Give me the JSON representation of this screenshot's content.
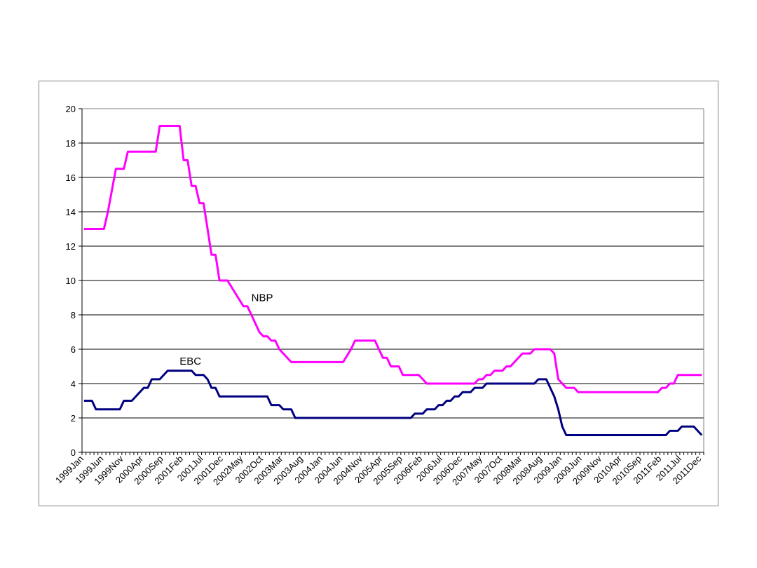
{
  "chart_data": {
    "type": "line",
    "title": "",
    "xlabel": "",
    "ylabel": "",
    "ylim": [
      0,
      20
    ],
    "yticks": [
      0,
      2,
      4,
      6,
      8,
      10,
      12,
      14,
      16,
      18,
      20
    ],
    "x_start": "1999-01",
    "x_end": "2011-12",
    "x_tick_labels": [
      "1999Jan",
      "1999Jun",
      "1999Nov",
      "2000Apr",
      "2000Sep",
      "2001Feb",
      "2001Jul",
      "2001Dec",
      "2002May",
      "2002Oct",
      "2003Mar",
      "2003Aug",
      "2004Jan",
      "2004Jun",
      "2004Nov",
      "2005Apr",
      "2005Sep",
      "2006Feb",
      "2006Jul",
      "2006Dec",
      "2007May",
      "2007Oct",
      "2008Mar",
      "2008Aug",
      "2009Jan",
      "2009Jun",
      "2009Nov",
      "2010Apr",
      "2010Sep",
      "2011Feb",
      "2011Jul",
      "2011Dec"
    ],
    "grid": true,
    "legend": "none",
    "series": [
      {
        "name": "NBP",
        "color": "#ff00ff",
        "points": [
          [
            "1999-01",
            13.0
          ],
          [
            "1999-06",
            13.0
          ],
          [
            "1999-07",
            14.0
          ],
          [
            "1999-09",
            16.5
          ],
          [
            "1999-11",
            16.5
          ],
          [
            "1999-12",
            17.5
          ],
          [
            "2000-07",
            17.5
          ],
          [
            "2000-08",
            19.0
          ],
          [
            "2001-01",
            19.0
          ],
          [
            "2001-02",
            17.0
          ],
          [
            "2001-03",
            17.0
          ],
          [
            "2001-04",
            15.5
          ],
          [
            "2001-05",
            15.5
          ],
          [
            "2001-06",
            14.5
          ],
          [
            "2001-07",
            14.5
          ],
          [
            "2001-09",
            11.5
          ],
          [
            "2001-10",
            11.5
          ],
          [
            "2001-11",
            10.0
          ],
          [
            "2002-01",
            10.0
          ],
          [
            "2002-05",
            8.5
          ],
          [
            "2002-06",
            8.5
          ],
          [
            "2002-09",
            7.0
          ],
          [
            "2002-10",
            6.75
          ],
          [
            "2002-11",
            6.75
          ],
          [
            "2002-12",
            6.5
          ],
          [
            "2003-01",
            6.5
          ],
          [
            "2003-02",
            6.0
          ],
          [
            "2003-04",
            5.5
          ],
          [
            "2003-05",
            5.25
          ],
          [
            "2004-06",
            5.25
          ],
          [
            "2004-08",
            6.0
          ],
          [
            "2004-09",
            6.5
          ],
          [
            "2005-02",
            6.5
          ],
          [
            "2005-04",
            5.5
          ],
          [
            "2005-05",
            5.5
          ],
          [
            "2005-06",
            5.0
          ],
          [
            "2005-08",
            5.0
          ],
          [
            "2005-09",
            4.5
          ],
          [
            "2006-01",
            4.5
          ],
          [
            "2006-03",
            4.0
          ],
          [
            "2007-03",
            4.0
          ],
          [
            "2007-04",
            4.25
          ],
          [
            "2007-05",
            4.25
          ],
          [
            "2007-06",
            4.5
          ],
          [
            "2007-07",
            4.5
          ],
          [
            "2007-08",
            4.75
          ],
          [
            "2007-10",
            4.75
          ],
          [
            "2007-11",
            5.0
          ],
          [
            "2007-12",
            5.0
          ],
          [
            "2008-02",
            5.5
          ],
          [
            "2008-03",
            5.75
          ],
          [
            "2008-05",
            5.75
          ],
          [
            "2008-06",
            6.0
          ],
          [
            "2008-10",
            6.0
          ],
          [
            "2008-11",
            5.75
          ],
          [
            "2008-12",
            4.25
          ],
          [
            "2009-02",
            3.75
          ],
          [
            "2009-04",
            3.75
          ],
          [
            "2009-05",
            3.5
          ],
          [
            "2011-01",
            3.5
          ],
          [
            "2011-02",
            3.75
          ],
          [
            "2011-03",
            3.75
          ],
          [
            "2011-04",
            4.0
          ],
          [
            "2011-05",
            4.0
          ],
          [
            "2011-06",
            4.5
          ],
          [
            "2011-12",
            4.5
          ]
        ]
      },
      {
        "name": "EBC",
        "color": "#000080",
        "points": [
          [
            "1999-01",
            3.0
          ],
          [
            "1999-03",
            3.0
          ],
          [
            "1999-04",
            2.5
          ],
          [
            "1999-10",
            2.5
          ],
          [
            "1999-11",
            3.0
          ],
          [
            "2000-01",
            3.0
          ],
          [
            "2000-03",
            3.5
          ],
          [
            "2000-04",
            3.75
          ],
          [
            "2000-05",
            3.75
          ],
          [
            "2000-06",
            4.25
          ],
          [
            "2000-08",
            4.25
          ],
          [
            "2000-10",
            4.75
          ],
          [
            "2001-04",
            4.75
          ],
          [
            "2001-05",
            4.5
          ],
          [
            "2001-07",
            4.5
          ],
          [
            "2001-08",
            4.25
          ],
          [
            "2001-09",
            3.75
          ],
          [
            "2001-10",
            3.75
          ],
          [
            "2001-11",
            3.25
          ],
          [
            "2002-11",
            3.25
          ],
          [
            "2002-12",
            2.75
          ],
          [
            "2003-02",
            2.75
          ],
          [
            "2003-03",
            2.5
          ],
          [
            "2003-05",
            2.5
          ],
          [
            "2003-06",
            2.0
          ],
          [
            "2005-11",
            2.0
          ],
          [
            "2005-12",
            2.25
          ],
          [
            "2006-02",
            2.25
          ],
          [
            "2006-03",
            2.5
          ],
          [
            "2006-05",
            2.5
          ],
          [
            "2006-06",
            2.75
          ],
          [
            "2006-07",
            2.75
          ],
          [
            "2006-08",
            3.0
          ],
          [
            "2006-09",
            3.0
          ],
          [
            "2006-10",
            3.25
          ],
          [
            "2006-11",
            3.25
          ],
          [
            "2006-12",
            3.5
          ],
          [
            "2007-02",
            3.5
          ],
          [
            "2007-03",
            3.75
          ],
          [
            "2007-05",
            3.75
          ],
          [
            "2007-06",
            4.0
          ],
          [
            "2008-06",
            4.0
          ],
          [
            "2008-07",
            4.25
          ],
          [
            "2008-09",
            4.25
          ],
          [
            "2008-10",
            3.75
          ],
          [
            "2008-11",
            3.25
          ],
          [
            "2008-12",
            2.5
          ],
          [
            "2009-01",
            1.5
          ],
          [
            "2009-02",
            1.0
          ],
          [
            "2011-03",
            1.0
          ],
          [
            "2011-04",
            1.25
          ],
          [
            "2011-06",
            1.25
          ],
          [
            "2011-07",
            1.5
          ],
          [
            "2011-10",
            1.5
          ],
          [
            "2011-12",
            1.0
          ]
        ]
      }
    ],
    "annotations": [
      {
        "text": "NBP",
        "x": "2002-07",
        "y": 8.8,
        "series": "NBP"
      },
      {
        "text": "EBC",
        "x": "2001-01",
        "y": 5.1,
        "series": "EBC"
      }
    ]
  }
}
